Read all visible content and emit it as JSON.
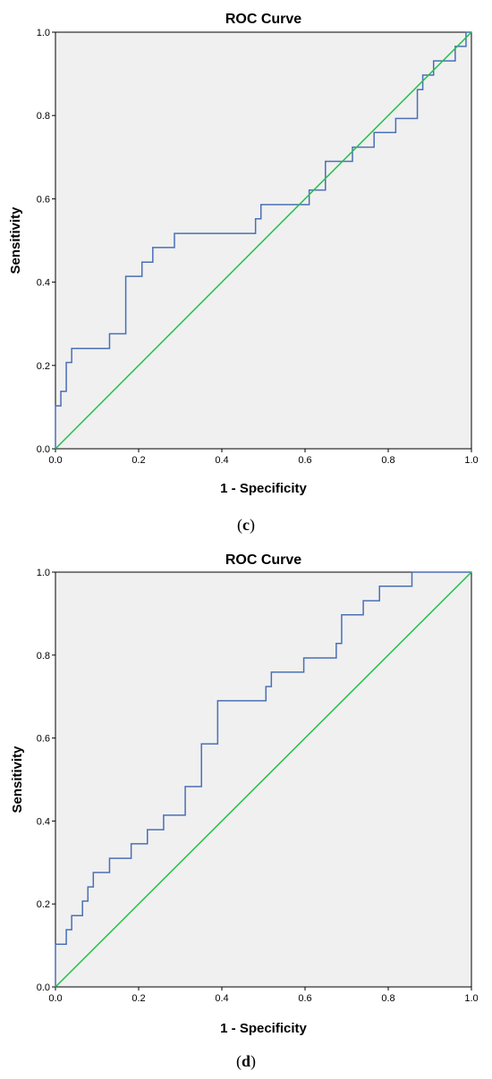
{
  "chart_data": [
    {
      "type": "line",
      "title": "ROC Curve",
      "xlabel": "1 - Specificity",
      "ylabel": "Sensitivity",
      "xlim": [
        0,
        1
      ],
      "ylim": [
        0,
        1
      ],
      "xticks": [
        "0.0",
        "0.2",
        "0.4",
        "0.6",
        "0.8",
        "1.0"
      ],
      "yticks": [
        "0.0",
        "0.2",
        "0.4",
        "0.6",
        "0.8",
        "1.0"
      ],
      "caption": "c",
      "series": [
        {
          "color": "#4a6fb5",
          "step": true,
          "points": [
            [
              0,
              0
            ],
            [
              0,
              0.103
            ],
            [
              0.013,
              0.103
            ],
            [
              0.013,
              0.138
            ],
            [
              0.026,
              0.138
            ],
            [
              0.026,
              0.207
            ],
            [
              0.039,
              0.207
            ],
            [
              0.039,
              0.241
            ],
            [
              0.13,
              0.241
            ],
            [
              0.13,
              0.276
            ],
            [
              0.169,
              0.276
            ],
            [
              0.169,
              0.414
            ],
            [
              0.208,
              0.414
            ],
            [
              0.208,
              0.448
            ],
            [
              0.234,
              0.448
            ],
            [
              0.234,
              0.483
            ],
            [
              0.286,
              0.483
            ],
            [
              0.286,
              0.517
            ],
            [
              0.481,
              0.517
            ],
            [
              0.481,
              0.552
            ],
            [
              0.494,
              0.552
            ],
            [
              0.494,
              0.586
            ],
            [
              0.61,
              0.586
            ],
            [
              0.61,
              0.621
            ],
            [
              0.649,
              0.621
            ],
            [
              0.649,
              0.69
            ],
            [
              0.714,
              0.69
            ],
            [
              0.714,
              0.724
            ],
            [
              0.766,
              0.724
            ],
            [
              0.766,
              0.759
            ],
            [
              0.818,
              0.759
            ],
            [
              0.818,
              0.793
            ],
            [
              0.87,
              0.793
            ],
            [
              0.87,
              0.862
            ],
            [
              0.883,
              0.862
            ],
            [
              0.883,
              0.897
            ],
            [
              0.909,
              0.897
            ],
            [
              0.909,
              0.931
            ],
            [
              0.961,
              0.931
            ],
            [
              0.961,
              0.966
            ],
            [
              0.987,
              0.966
            ],
            [
              0.987,
              1
            ],
            [
              1,
              1
            ]
          ]
        },
        {
          "color": "#22c04a",
          "points": [
            [
              0,
              0
            ],
            [
              1,
              1
            ]
          ]
        }
      ]
    },
    {
      "type": "line",
      "title": "ROC Curve",
      "xlabel": "1 - Specificity",
      "ylabel": "Sensitivity",
      "xlim": [
        0,
        1
      ],
      "ylim": [
        0,
        1
      ],
      "xticks": [
        "0.0",
        "0.2",
        "0.4",
        "0.6",
        "0.8",
        "1.0"
      ],
      "yticks": [
        "0.0",
        "0.2",
        "0.4",
        "0.6",
        "0.8",
        "1.0"
      ],
      "caption": "d",
      "series": [
        {
          "color": "#4a6fb5",
          "step": true,
          "points": [
            [
              0,
              0
            ],
            [
              0,
              0.103
            ],
            [
              0.026,
              0.103
            ],
            [
              0.026,
              0.138
            ],
            [
              0.039,
              0.138
            ],
            [
              0.039,
              0.172
            ],
            [
              0.065,
              0.172
            ],
            [
              0.065,
              0.207
            ],
            [
              0.078,
              0.207
            ],
            [
              0.078,
              0.241
            ],
            [
              0.091,
              0.241
            ],
            [
              0.091,
              0.276
            ],
            [
              0.13,
              0.276
            ],
            [
              0.13,
              0.31
            ],
            [
              0.182,
              0.31
            ],
            [
              0.182,
              0.345
            ],
            [
              0.221,
              0.345
            ],
            [
              0.221,
              0.379
            ],
            [
              0.26,
              0.379
            ],
            [
              0.26,
              0.414
            ],
            [
              0.312,
              0.414
            ],
            [
              0.312,
              0.483
            ],
            [
              0.351,
              0.483
            ],
            [
              0.351,
              0.586
            ],
            [
              0.39,
              0.586
            ],
            [
              0.39,
              0.69
            ],
            [
              0.506,
              0.69
            ],
            [
              0.506,
              0.724
            ],
            [
              0.519,
              0.724
            ],
            [
              0.519,
              0.759
            ],
            [
              0.597,
              0.759
            ],
            [
              0.597,
              0.793
            ],
            [
              0.675,
              0.793
            ],
            [
              0.675,
              0.828
            ],
            [
              0.688,
              0.828
            ],
            [
              0.688,
              0.897
            ],
            [
              0.74,
              0.897
            ],
            [
              0.74,
              0.931
            ],
            [
              0.779,
              0.931
            ],
            [
              0.779,
              0.966
            ],
            [
              0.857,
              0.966
            ],
            [
              0.857,
              1
            ],
            [
              1,
              1
            ]
          ]
        },
        {
          "color": "#22c04a",
          "points": [
            [
              0,
              0
            ],
            [
              1,
              1
            ]
          ]
        }
      ]
    }
  ]
}
